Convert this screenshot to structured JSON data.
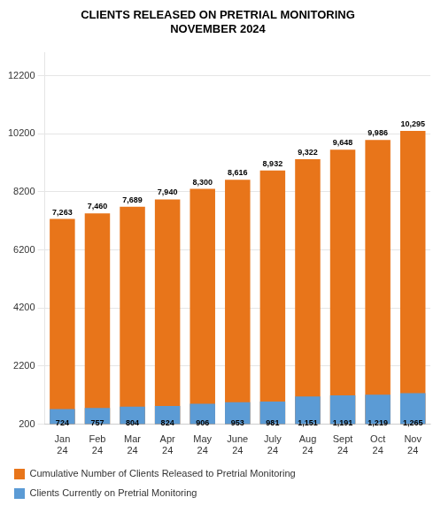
{
  "chart_data": {
    "type": "bar",
    "title": "CLIENTS RELEASED ON PRETRIAL MONITORING\nNOVEMBER 2024",
    "categories": [
      "Jan\n24",
      "Feb\n24",
      "Mar\n24",
      "Apr\n24",
      "May\n24",
      "June\n24",
      "July\n24",
      "Aug\n24",
      "Sept\n24",
      "Oct\n24",
      "Nov\n24"
    ],
    "series": [
      {
        "name": "Cumulative Number of Clients Released to Pretrial Monitoring",
        "color": "#E8751A",
        "values": [
          7263,
          7460,
          7689,
          7940,
          8300,
          8616,
          8932,
          9322,
          9648,
          9986,
          10295
        ],
        "value_labels": [
          "7,263",
          "7,460",
          "7,689",
          "7,940",
          "8,300",
          "8,616",
          "8,932",
          "9,322",
          "9,648",
          "9,986",
          "10,295"
        ]
      },
      {
        "name": "Clients Currently on Pretrial Monitoring",
        "color": "#5B9BD5",
        "values": [
          724,
          757,
          804,
          824,
          906,
          953,
          981,
          1151,
          1191,
          1219,
          1265
        ],
        "value_labels": [
          "724",
          "757",
          "804",
          "824",
          "906",
          "953",
          "981",
          "1,151",
          "1,191",
          "1,219",
          "1,265"
        ]
      }
    ],
    "ylim": [
      200,
      13000
    ],
    "yticks": [
      200,
      2200,
      4200,
      6200,
      8200,
      10200,
      12200
    ],
    "grid": true,
    "legend": "bottom",
    "data_labels": true
  }
}
